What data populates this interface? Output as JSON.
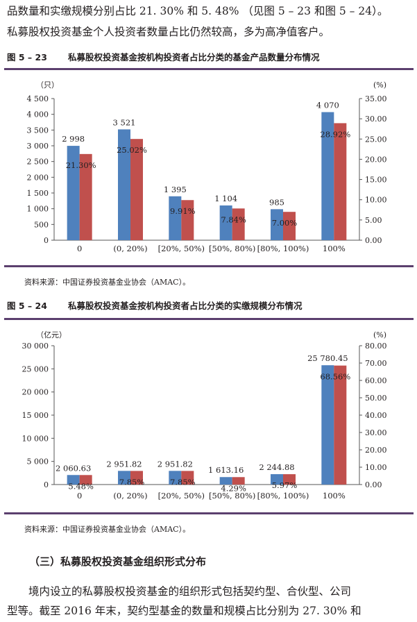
{
  "intro": {
    "line1": "品数量和实缴规模分别占比 21. 30% 和 5. 48% （见图 5 – 23 和图 5 – 24）。",
    "line2": "私募股权投资基金个人投资者数量占比仍然较高，多为高净值客户。"
  },
  "figures": [
    {
      "number": "图 5 – 23",
      "title": "私募股权投资基金按机构投资者占比分类的基金产品数量分布情况",
      "source": "资料来源：中国证券投资基金业协会（AMAC）。"
    },
    {
      "number": "图 5 – 24",
      "title": "私募股权投资基金按机构投资者占比分类的实缴规模分布情况",
      "source": "资料来源：中国证券投资基金业协会（AMAC）。"
    }
  ],
  "section": {
    "heading": "（三）私募股权投资基金组织形式分布"
  },
  "outro": {
    "line1": "境内设立的私募股权投资基金的组织形式包括契约型、合伙型、公司",
    "line2": "型等。截至 2016 年末，契约型基金的数量和规模占比分别为 27. 30% 和"
  },
  "colors": {
    "blue": "#4f81bd",
    "red": "#c0504d",
    "rule": "#5b3f6e"
  },
  "chart_data": [
    {
      "type": "bar",
      "categories": [
        "0",
        "(0, 20%)",
        "[20%, 50%)",
        "[50%, 80%)",
        "[80%, 100%)",
        "100%"
      ],
      "y_unit": "（只）",
      "y2_unit": "(%)",
      "ylim": [
        0,
        4500
      ],
      "y_ticks": [
        0,
        500,
        1000,
        1500,
        2000,
        2500,
        3000,
        3500,
        4000,
        4500
      ],
      "y_tick_labels": [
        "0",
        "500",
        "1 000",
        "1 500",
        "2 000",
        "2 500",
        "3 000",
        "3 500",
        "4 000",
        "4 500"
      ],
      "y2lim": [
        0,
        35
      ],
      "y2_ticks": [
        0,
        5,
        10,
        15,
        20,
        25,
        30,
        35
      ],
      "y2_tick_labels": [
        "0.00",
        "5.00",
        "10.00",
        "15.00",
        "20.00",
        "25.00",
        "30.00",
        "35.00"
      ],
      "series": [
        {
          "color": "#4f81bd",
          "axis": "left",
          "values": [
            2998,
            3521,
            1395,
            1104,
            985,
            4070
          ],
          "labels": [
            "2 998",
            "3 521",
            "1 395",
            "1 104",
            "985",
            "4 070"
          ]
        },
        {
          "color": "#c0504d",
          "axis": "right",
          "values": [
            21.3,
            25.02,
            9.91,
            7.84,
            7.0,
            28.92
          ],
          "labels": [
            "21.30%",
            "25.02%",
            "9.91%",
            "7.84%",
            "7.00%",
            "28.92%"
          ]
        }
      ],
      "grid": false,
      "legend": "none"
    },
    {
      "type": "bar",
      "categories": [
        "0",
        "(0, 20%)",
        "[20%, 50%)",
        "[50%, 80%)",
        "[80%, 100%)",
        "100%"
      ],
      "y_unit": "（亿元）",
      "y2_unit": "(%)",
      "ylim": [
        0,
        30000
      ],
      "y_ticks": [
        0,
        5000,
        10000,
        15000,
        20000,
        25000,
        30000
      ],
      "y_tick_labels": [
        "0",
        "5 000",
        "10 000",
        "15 000",
        "20 000",
        "25 000",
        "30 000"
      ],
      "y2lim": [
        0,
        80
      ],
      "y2_ticks": [
        0,
        10,
        20,
        30,
        40,
        50,
        60,
        70,
        80
      ],
      "y2_tick_labels": [
        "0.00",
        "10.00",
        "20.00",
        "30.00",
        "40.00",
        "50.00",
        "60.00",
        "70.00",
        "80.00"
      ],
      "series": [
        {
          "color": "#4f81bd",
          "axis": "left",
          "values": [
            2060.63,
            2951.82,
            2951.82,
            1613.16,
            2244.88,
            25780.45
          ],
          "labels": [
            "2 060.63",
            "2 951.82",
            "2 951.82",
            "1 613.16",
            "2 244.88",
            "25 780.45"
          ]
        },
        {
          "color": "#c0504d",
          "axis": "right",
          "values": [
            5.48,
            7.85,
            7.85,
            4.29,
            5.97,
            68.56
          ],
          "labels": [
            "5.48%",
            "7.85%",
            "7.85%",
            "4.29%",
            "5.97%",
            "68.56%"
          ]
        }
      ],
      "grid": false,
      "legend": "none"
    }
  ]
}
